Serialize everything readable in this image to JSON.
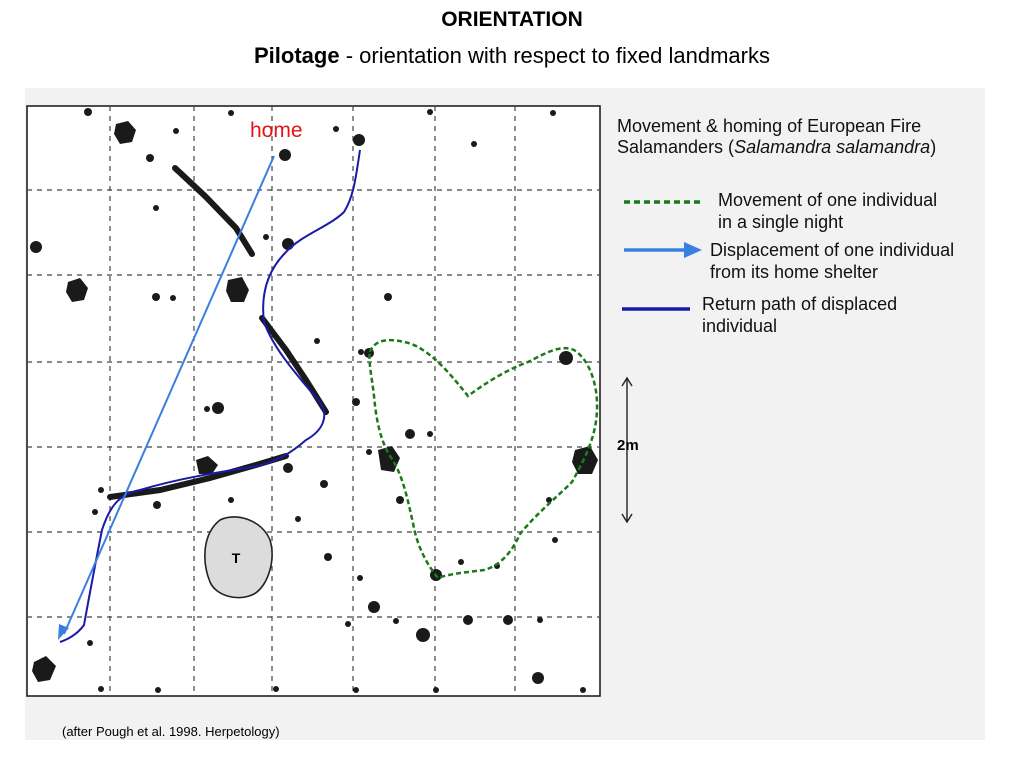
{
  "header": {
    "title": "ORIENTATION",
    "subtitle_bold": "Pilotage",
    "subtitle_rest": " - orientation with respect to fixed landmarks"
  },
  "map": {
    "home_label": "home",
    "tree_label": "T",
    "scale_label": "2m"
  },
  "legend": {
    "heading_line1": "Movement & homing of European Fire",
    "heading_line2_prefix": "Salamanders (",
    "heading_line2_italic": "Salamandra salamandra",
    "heading_line2_suffix": ")",
    "items": [
      {
        "line1": "Movement of one individual",
        "line2": "in a single night",
        "color": "#1a7a1a",
        "style": "dashed"
      },
      {
        "line1": "Displacement of one individual",
        "line2": "from its home shelter",
        "color": "#3a7fe0",
        "style": "arrow"
      },
      {
        "line1": "Return path of displaced",
        "line2": "individual",
        "color": "#1a1aa8",
        "style": "solid"
      }
    ]
  },
  "citation": "(after Pough et al. 1998. Herpetology)"
}
